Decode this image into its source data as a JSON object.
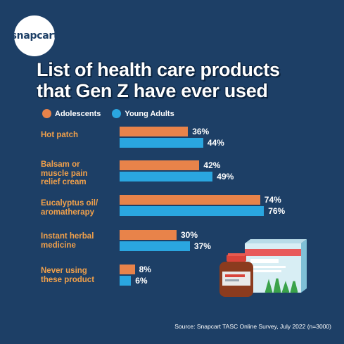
{
  "brand": {
    "logo_text": "snapcart"
  },
  "title_line1": "List of health care products",
  "title_line2": "that Gen Z have ever used",
  "source": "Source: Snapcart TASC Online Survey, July 2022 (n=3000)",
  "colors": {
    "background": "#1d3f66",
    "adolescents": "#e8834a",
    "young_adults": "#2aa6e0",
    "category_label": "#f0a04b"
  },
  "chart_data": {
    "type": "bar",
    "orientation": "horizontal",
    "legend_position": "top-left",
    "categories": [
      "Hot patch",
      "Balsam or muscle pain relief cream",
      "Eucalyptus oil/ aromatherapy",
      "Instant herbal medicine",
      "Never using these product"
    ],
    "category_lines": [
      [
        "Hot patch"
      ],
      [
        "Balsam or",
        "muscle pain",
        "relief cream"
      ],
      [
        "Eucalyptus oil/",
        "aromatherapy"
      ],
      [
        "Instant herbal",
        "medicine"
      ],
      [
        "Never using",
        "these product"
      ]
    ],
    "series": [
      {
        "name": "Adolescents",
        "values": [
          36,
          42,
          74,
          30,
          8
        ],
        "labels": [
          "36%",
          "42%",
          "74%",
          "30%",
          "8%"
        ]
      },
      {
        "name": "Young Adults",
        "values": [
          44,
          49,
          76,
          37,
          6
        ],
        "labels": [
          "44%",
          "49%",
          "76%",
          "37%",
          "6%"
        ]
      }
    ],
    "unit": "%",
    "xlim": [
      0,
      100
    ],
    "grid": false
  },
  "illustration": {
    "icon": "medicine-bottle-and-box-icon"
  }
}
